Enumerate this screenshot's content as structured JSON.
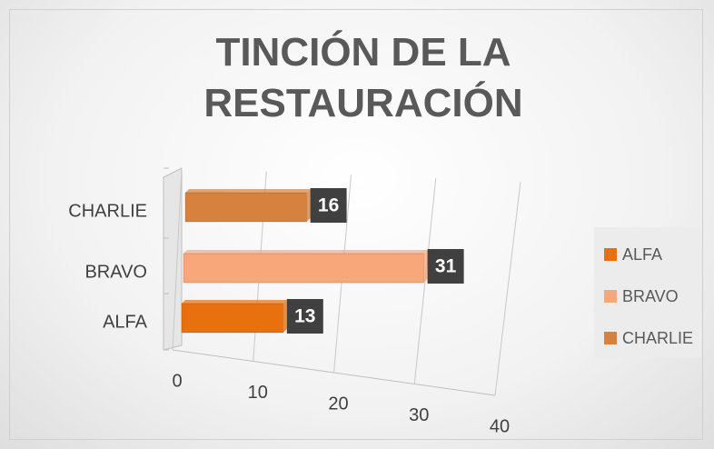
{
  "chart_data": {
    "type": "bar3d",
    "title": "TINCIÓN DE LA RESTAURACIÓN",
    "categories": [
      "ALFA",
      "BRAVO",
      "CHARLIE"
    ],
    "values": [
      13,
      31,
      16
    ],
    "colors": [
      "#e8700f",
      "#f8a77b",
      "#d6813d"
    ],
    "xlim": [
      0,
      40
    ],
    "xticks": [
      0,
      10,
      20,
      30,
      40
    ],
    "grid": true,
    "legend": "right"
  }
}
